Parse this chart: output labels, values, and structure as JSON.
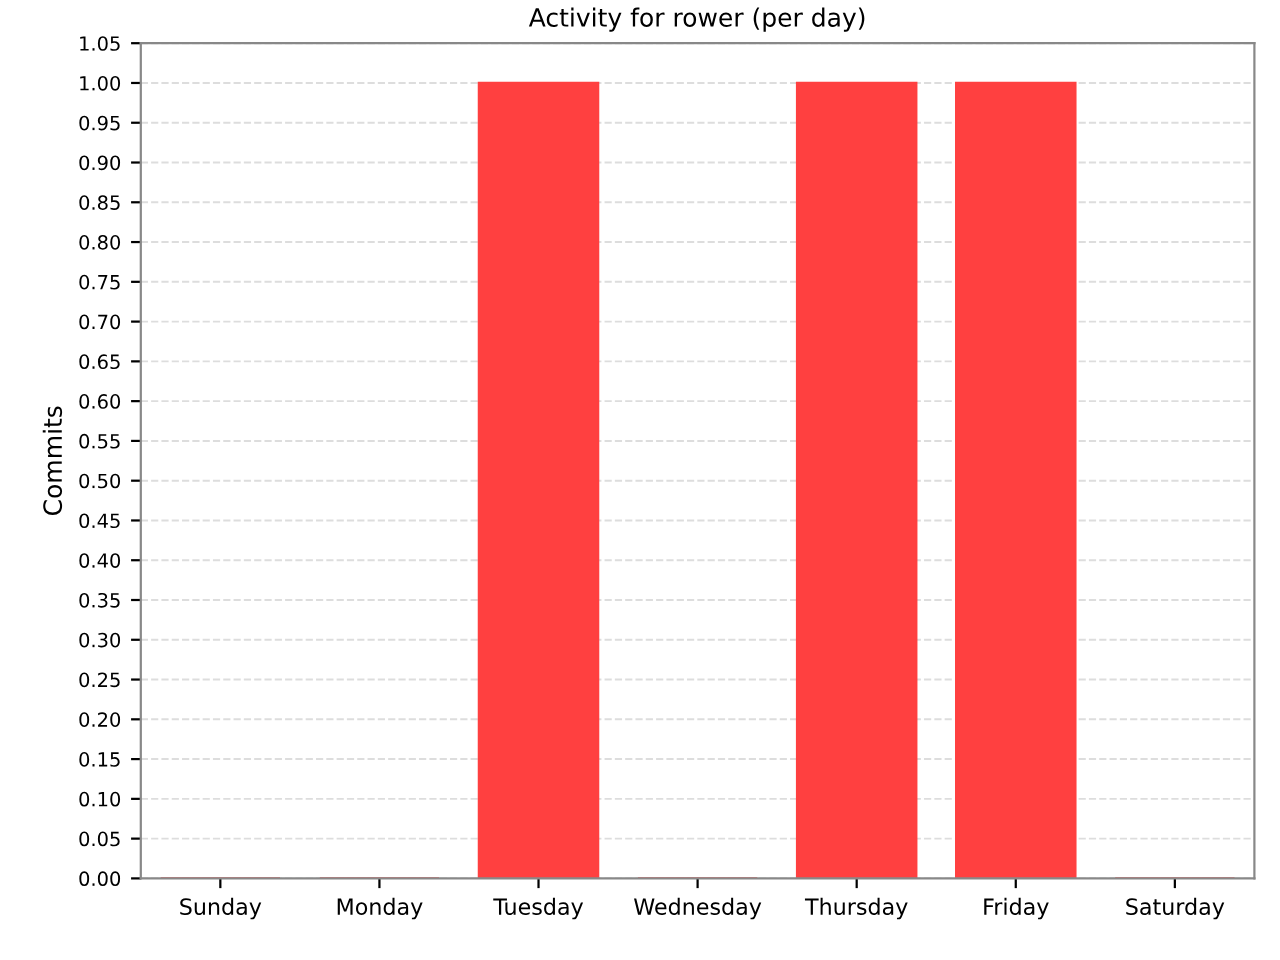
{
  "chart_data": {
    "type": "bar",
    "title": "Activity for rower (per day)",
    "ylabel": "Commits",
    "categories": [
      "Sunday",
      "Monday",
      "Tuesday",
      "Wednesday",
      "Thursday",
      "Friday",
      "Saturday"
    ],
    "values": [
      0,
      0,
      1,
      0,
      1,
      1,
      0
    ],
    "color": "#ff4040",
    "ylim": [
      0,
      1.05
    ],
    "yticks": [
      {
        "value": 0,
        "label": "0.00"
      },
      {
        "value": 0.05,
        "label": "0.05"
      },
      {
        "value": 0.1,
        "label": "0.10"
      },
      {
        "value": 0.15,
        "label": "0.15"
      },
      {
        "value": 0.2,
        "label": "0.20"
      },
      {
        "value": 0.25,
        "label": "0.25"
      },
      {
        "value": 0.3,
        "label": "0.30"
      },
      {
        "value": 0.35,
        "label": "0.35"
      },
      {
        "value": 0.4,
        "label": "0.40"
      },
      {
        "value": 0.45,
        "label": "0.45"
      },
      {
        "value": 0.5,
        "label": "0.50"
      },
      {
        "value": 0.55,
        "label": "0.55"
      },
      {
        "value": 0.6,
        "label": "0.60"
      },
      {
        "value": 0.65,
        "label": "0.65"
      },
      {
        "value": 0.7,
        "label": "0.70"
      },
      {
        "value": 0.75,
        "label": "0.75"
      },
      {
        "value": 0.8,
        "label": "0.80"
      },
      {
        "value": 0.85,
        "label": "0.85"
      },
      {
        "value": 0.9,
        "label": "0.90"
      },
      {
        "value": 0.95,
        "label": "0.95"
      },
      {
        "value": 1,
        "label": "1.00"
      },
      {
        "value": 1.05,
        "label": "1.05"
      }
    ],
    "grid": "y"
  }
}
